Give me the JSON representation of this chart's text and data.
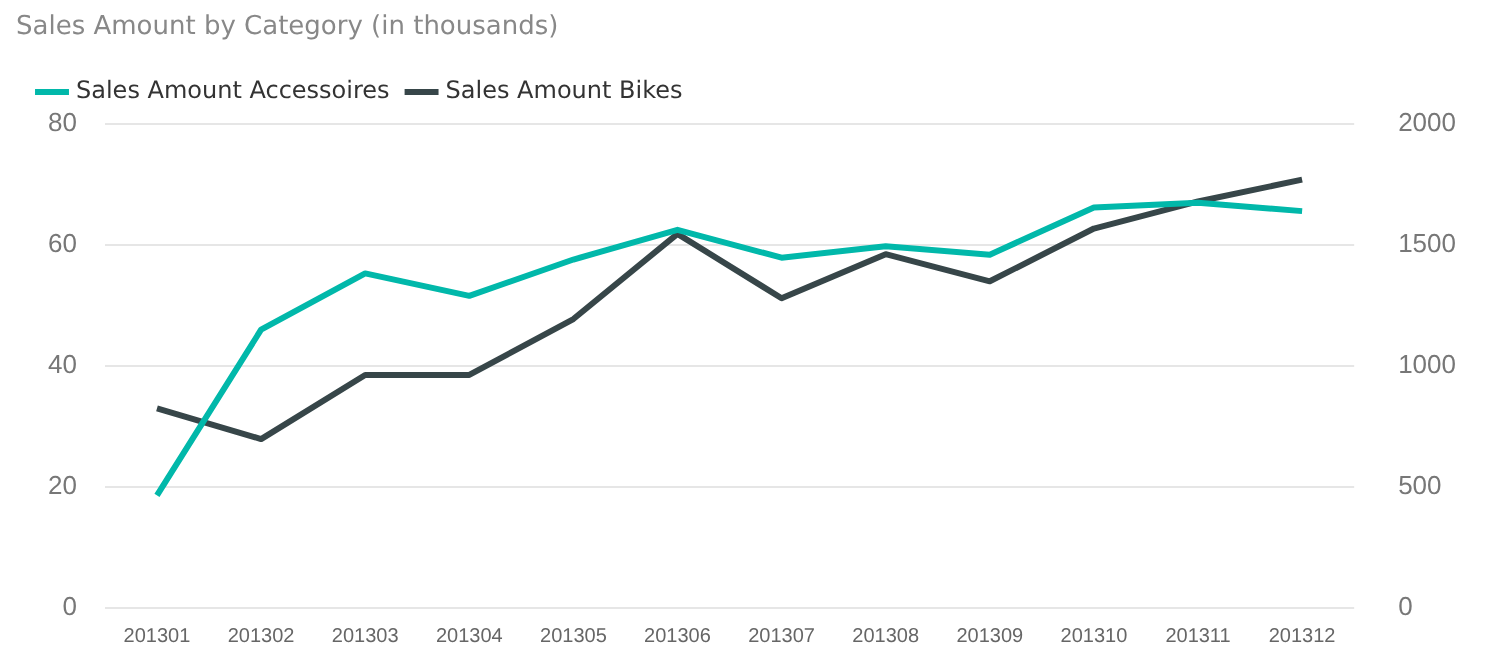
{
  "chart_data": {
    "type": "line",
    "title": "Sales Amount by Category (in thousands)",
    "categories": [
      "201301",
      "201302",
      "201303",
      "201304",
      "201305",
      "201306",
      "201307",
      "201308",
      "201309",
      "201310",
      "201311",
      "201312"
    ],
    "series": [
      {
        "name": "Sales Amount Accessoires",
        "color": "#01b8aa",
        "values": [
          18.6,
          46,
          55.3,
          51.6,
          57.6,
          62.5,
          57.9,
          59.8,
          58.4,
          66.2,
          67,
          65.6
        ]
      },
      {
        "name": "Sales Amount Bikes",
        "color": "#374649",
        "axis": "y2",
        "values": [
          825,
          698,
          963,
          963,
          1194,
          1546,
          1280,
          1462,
          1350,
          1568,
          1680,
          1770
        ]
      }
    ],
    "ylim": [
      0,
      80
    ],
    "yticks": [
      0,
      20,
      40,
      60,
      80
    ],
    "y2lim": [
      0,
      2000
    ],
    "y2ticks": [
      0,
      500,
      1000,
      1500,
      2000
    ],
    "grid": "y",
    "legend": "top left",
    "marker": "none",
    "line_style": "solid"
  }
}
